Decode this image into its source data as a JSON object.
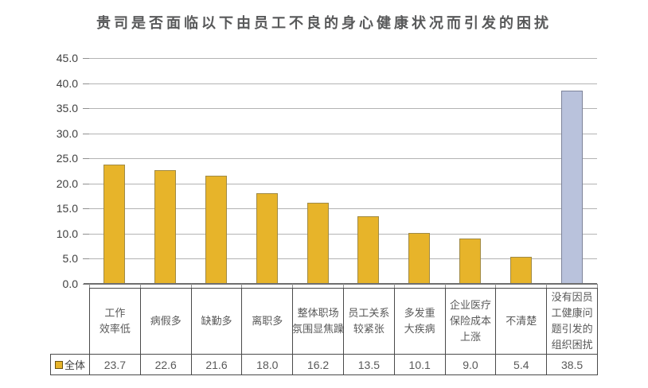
{
  "title": "贵司是否面临以下由员工不良的身心健康状况而引发的困扰",
  "legend": {
    "label": "全体"
  },
  "colors": {
    "bar": "#e7b42a",
    "bar_border": "#a08a45",
    "last_bar": "#b9c2dc",
    "last_bar_border": "#7d8399",
    "gridline": "#b3b3b3",
    "baseline": "#6f6f6f",
    "table_border": "#4a4a4a",
    "title_text": "#58595a",
    "axis_text": "#3f3f3f",
    "table_text": "#595959"
  },
  "chart_data": {
    "type": "bar",
    "title": "贵司是否面临以下由员工不良的身心健康状况而引发的困扰",
    "categories": [
      "工作效率低",
      "病假多",
      "缺勤多",
      "离职多",
      "整体职场氛围显焦躁",
      "员工关系较紧张",
      "多发重大疾病",
      "企业医疗保险成本上涨",
      "不清楚",
      "没有因员工健康问题引发的组织困扰"
    ],
    "category_lines": [
      [
        "工作",
        "效率低"
      ],
      [
        "病假多"
      ],
      [
        "缺勤多"
      ],
      [
        "离职多"
      ],
      [
        "整体职场",
        "氛围显焦躁"
      ],
      [
        "员工关系",
        "较紧张"
      ],
      [
        "多发重",
        "大疾病"
      ],
      [
        "企业医疗",
        "保险成本",
        "上涨"
      ],
      [
        "不清楚"
      ],
      [
        "没有因员",
        "工健康问",
        "题引发的",
        "组织困扰"
      ]
    ],
    "series": [
      {
        "name": "全体",
        "values": [
          23.7,
          22.6,
          21.6,
          18.0,
          16.2,
          13.5,
          10.1,
          9.0,
          5.4,
          38.5
        ]
      }
    ],
    "value_labels": [
      "23.7",
      "22.6",
      "21.6",
      "18.0",
      "16.2",
      "13.5",
      "10.1",
      "9.0",
      "5.4",
      "38.5"
    ],
    "xlabel": "",
    "ylabel": "",
    "ylim": [
      0,
      45
    ],
    "ytick_values": [
      45,
      40,
      35,
      30,
      25,
      20,
      15,
      10,
      5,
      0
    ],
    "ytick_labels": [
      "45.0",
      "40.0",
      "35.0",
      "30.0",
      "25.0",
      "20.0",
      "15.0",
      "10.0",
      "5.0",
      "0.0"
    ],
    "grid": true,
    "legend_position": "bottom-left-table",
    "highlight_last_bar": true
  }
}
